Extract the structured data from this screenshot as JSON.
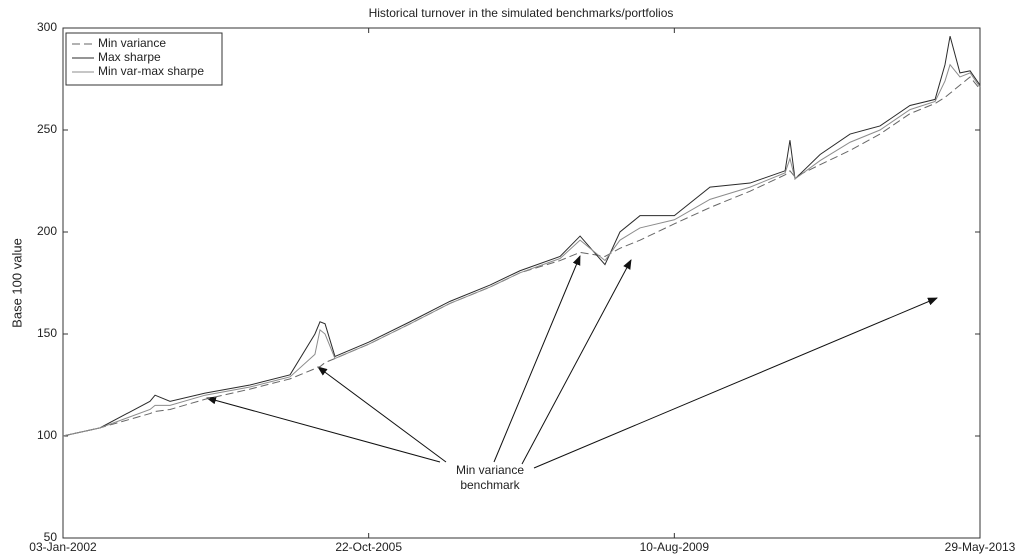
{
  "chart_data": {
    "type": "line",
    "title": "Historical turnover in the simulated benchmarks/portfolios",
    "ylabel": "Base 100 value",
    "annotation_lines": [
      "Min variance",
      "benchmark"
    ],
    "x": [
      "2002-01-03",
      "2002-06-20",
      "2003-02-02",
      "2003-02-25",
      "2003-05-04",
      "2003-10-10",
      "2004-05-01",
      "2004-10-30",
      "2005-02-20",
      "2005-03-15",
      "2005-04-07",
      "2005-05-22",
      "2005-10-22",
      "2006-04-28",
      "2006-10-26",
      "2007-04-26",
      "2007-09-09",
      "2008-03-09",
      "2008-06-08",
      "2008-09-29",
      "2008-12-06",
      "2009-03-07",
      "2009-08-10",
      "2010-01-19",
      "2010-07-20",
      "2010-12-26",
      "2011-01-17",
      "2011-02-09",
      "2011-06-03",
      "2011-10-17",
      "2012-03-01",
      "2012-07-15",
      "2012-11-06",
      "2012-12-21",
      "2013-01-13",
      "2013-02-27",
      "2013-04-14",
      "2013-05-29"
    ],
    "series": [
      {
        "name": "Min variance",
        "color": "#666666",
        "dash": true,
        "values": [
          100,
          104,
          111,
          112,
          113,
          118,
          123,
          128,
          133,
          134,
          136,
          138,
          145,
          155,
          165,
          173,
          180,
          186,
          190,
          188,
          192,
          196,
          204,
          212,
          220,
          228,
          230,
          227,
          233,
          240,
          248,
          258,
          263,
          266,
          268,
          272,
          276,
          270
        ]
      },
      {
        "name": "Max sharpe",
        "color": "#2b2b2b",
        "dash": false,
        "values": [
          100,
          104,
          117,
          120,
          117,
          121,
          125,
          130,
          150,
          156,
          155,
          139,
          146,
          156,
          166,
          174,
          181,
          188,
          198,
          184,
          200,
          208,
          208,
          222,
          224,
          230,
          245,
          226,
          238,
          248,
          252,
          262,
          265,
          282,
          296,
          278,
          279,
          272
        ]
      },
      {
        "name": "Min var-max sharpe",
        "color": "#8c8c8c",
        "dash": false,
        "values": [
          100,
          104,
          113,
          115,
          115,
          120,
          124,
          129,
          140,
          152,
          150,
          138,
          145,
          155,
          165,
          173,
          180,
          187,
          196,
          186,
          196,
          202,
          206,
          216,
          222,
          229,
          236,
          226,
          235,
          244,
          250,
          260,
          264,
          274,
          282,
          276,
          278,
          271
        ]
      }
    ],
    "xlim": [
      "2002-01-03",
      "2013-05-29"
    ],
    "xticks": [
      {
        "value": "2002-01-03",
        "label": "03-Jan-2002"
      },
      {
        "value": "2005-10-22",
        "label": "22-Oct-2005"
      },
      {
        "value": "2009-08-10",
        "label": "10-Aug-2009"
      },
      {
        "value": "2013-05-29",
        "label": "29-May-2013"
      }
    ],
    "ylim": [
      50,
      300
    ],
    "yticks": [
      50,
      100,
      150,
      200,
      250,
      300
    ],
    "grid": false,
    "legend": "top-left"
  }
}
